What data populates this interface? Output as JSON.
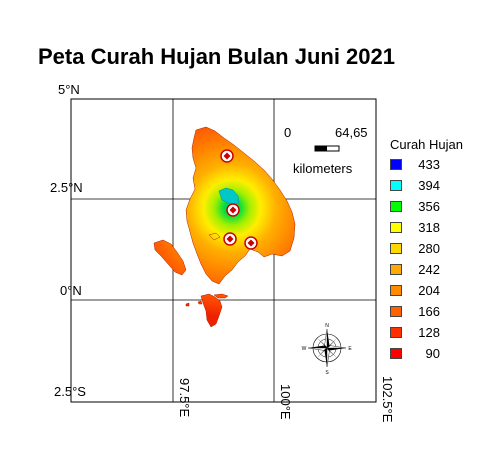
{
  "title": "Peta Curah Hujan Bulan Juni 2021",
  "grid": {
    "lat_labels": [
      "5°N",
      "2.5°N",
      "0°N",
      "2.5°S"
    ],
    "lon_labels": [
      "97.5°E",
      "100°E",
      "102.5°E"
    ]
  },
  "scale_bar": {
    "start_label": "0",
    "end_label": "64,65",
    "unit_label": "kilometers"
  },
  "compass": {
    "icon": "compass-rose-icon",
    "letters": [
      "N",
      "E",
      "S",
      "W"
    ]
  },
  "legend": {
    "title": "Curah Hujan",
    "items": [
      {
        "value": "433",
        "color": "#0000ff"
      },
      {
        "value": "394",
        "color": "#00ffff"
      },
      {
        "value": "356",
        "color": "#00ff00"
      },
      {
        "value": "318",
        "color": "#ffff00"
      },
      {
        "value": "280",
        "color": "#ffd700"
      },
      {
        "value": "242",
        "color": "#ffaa00"
      },
      {
        "value": "204",
        "color": "#ff8c00"
      },
      {
        "value": "166",
        "color": "#ff6000"
      },
      {
        "value": "128",
        "color": "#ff3000"
      },
      {
        "value": "90",
        "color": "#ff0000"
      }
    ]
  },
  "stations": {
    "icon": "rain-station-marker-icon",
    "count": 4
  }
}
